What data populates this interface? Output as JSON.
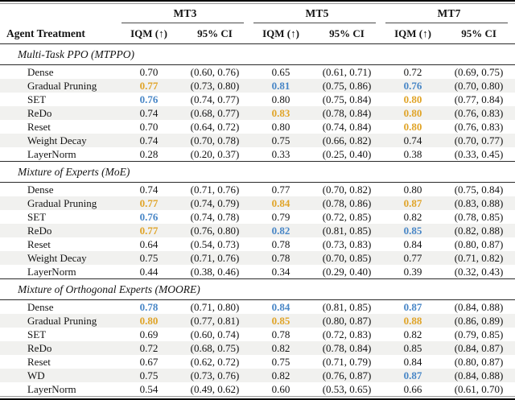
{
  "colors": {
    "highlight_orange": "#E0A428",
    "highlight_blue": "#4886C6",
    "stripe": "#F1F1EF",
    "text": "#141414"
  },
  "header": {
    "treatment_col": "Agent Treatment",
    "groups": [
      "MT3",
      "MT5",
      "MT7"
    ],
    "metric_label": "IQM (↑)",
    "ci_label": "95% CI"
  },
  "sections": [
    {
      "title": "Multi-Task PPO (MTPPO)",
      "rows": [
        {
          "treatment": "Dense",
          "cols": [
            {
              "iqm": "0.70",
              "hl": "none",
              "ci": "(0.60, 0.76)"
            },
            {
              "iqm": "0.65",
              "hl": "none",
              "ci": "(0.61, 0.71)"
            },
            {
              "iqm": "0.72",
              "hl": "none",
              "ci": "(0.69, 0.75)"
            }
          ]
        },
        {
          "treatment": "Gradual Pruning",
          "cols": [
            {
              "iqm": "0.77",
              "hl": "orange",
              "ci": "(0.73, 0.80)"
            },
            {
              "iqm": "0.81",
              "hl": "blue",
              "ci": "(0.75, 0.86)"
            },
            {
              "iqm": "0.76",
              "hl": "blue",
              "ci": "(0.70, 0.80)"
            }
          ]
        },
        {
          "treatment": "SET",
          "cols": [
            {
              "iqm": "0.76",
              "hl": "blue",
              "ci": "(0.74, 0.77)"
            },
            {
              "iqm": "0.80",
              "hl": "none",
              "ci": "(0.75, 0.84)"
            },
            {
              "iqm": "0.80",
              "hl": "orange",
              "ci": "(0.77, 0.84)"
            }
          ]
        },
        {
          "treatment": "ReDo",
          "cols": [
            {
              "iqm": "0.74",
              "hl": "none",
              "ci": "(0.68, 0.77)"
            },
            {
              "iqm": "0.83",
              "hl": "orange",
              "ci": "(0.78, 0.84)"
            },
            {
              "iqm": "0.80",
              "hl": "orange",
              "ci": "(0.76, 0.83)"
            }
          ]
        },
        {
          "treatment": "Reset",
          "cols": [
            {
              "iqm": "0.70",
              "hl": "none",
              "ci": "(0.64, 0.72)"
            },
            {
              "iqm": "0.80",
              "hl": "none",
              "ci": "(0.74, 0.84)"
            },
            {
              "iqm": "0.80",
              "hl": "orange",
              "ci": "(0.76, 0.83)"
            }
          ]
        },
        {
          "treatment": "Weight Decay",
          "cols": [
            {
              "iqm": "0.74",
              "hl": "none",
              "ci": "(0.70, 0.78)"
            },
            {
              "iqm": "0.75",
              "hl": "none",
              "ci": "(0.66, 0.82)"
            },
            {
              "iqm": "0.74",
              "hl": "none",
              "ci": "(0.70, 0.77)"
            }
          ]
        },
        {
          "treatment": "LayerNorm",
          "cols": [
            {
              "iqm": "0.28",
              "hl": "none",
              "ci": "(0.20, 0.37)"
            },
            {
              "iqm": "0.33",
              "hl": "none",
              "ci": "(0.25, 0.40)"
            },
            {
              "iqm": "0.38",
              "hl": "none",
              "ci": "(0.33, 0.45)"
            }
          ]
        }
      ]
    },
    {
      "title": "Mixture of Experts (MoE)",
      "rows": [
        {
          "treatment": "Dense",
          "cols": [
            {
              "iqm": "0.74",
              "hl": "none",
              "ci": "(0.71, 0.76)"
            },
            {
              "iqm": "0.77",
              "hl": "none",
              "ci": "(0.70, 0.82)"
            },
            {
              "iqm": "0.80",
              "hl": "none",
              "ci": "(0.75, 0.84)"
            }
          ]
        },
        {
          "treatment": "Gradual Pruning",
          "cols": [
            {
              "iqm": "0.77",
              "hl": "orange",
              "ci": "(0.74, 0.79)"
            },
            {
              "iqm": "0.84",
              "hl": "orange",
              "ci": "(0.78, 0.86)"
            },
            {
              "iqm": "0.87",
              "hl": "orange",
              "ci": "(0.83, 0.88)"
            }
          ]
        },
        {
          "treatment": "SET",
          "cols": [
            {
              "iqm": "0.76",
              "hl": "blue",
              "ci": "(0.74, 0.78)"
            },
            {
              "iqm": "0.79",
              "hl": "none",
              "ci": "(0.72, 0.85)"
            },
            {
              "iqm": "0.82",
              "hl": "none",
              "ci": "(0.78, 0.85)"
            }
          ]
        },
        {
          "treatment": "ReDo",
          "cols": [
            {
              "iqm": "0.77",
              "hl": "orange",
              "ci": "(0.76, 0.80)"
            },
            {
              "iqm": "0.82",
              "hl": "blue",
              "ci": "(0.81, 0.85)"
            },
            {
              "iqm": "0.85",
              "hl": "blue",
              "ci": "(0.82, 0.88)"
            }
          ]
        },
        {
          "treatment": "Reset",
          "cols": [
            {
              "iqm": "0.64",
              "hl": "none",
              "ci": "(0.54, 0.73)"
            },
            {
              "iqm": "0.78",
              "hl": "none",
              "ci": "(0.73, 0.83)"
            },
            {
              "iqm": "0.84",
              "hl": "none",
              "ci": "(0.80, 0.87)"
            }
          ]
        },
        {
          "treatment": "Weight Decay",
          "cols": [
            {
              "iqm": "0.75",
              "hl": "none",
              "ci": "(0.71, 0.76)"
            },
            {
              "iqm": "0.78",
              "hl": "none",
              "ci": "(0.70, 0.85)"
            },
            {
              "iqm": "0.77",
              "hl": "none",
              "ci": "(0.71, 0.82)"
            }
          ]
        },
        {
          "treatment": "LayerNorm",
          "cols": [
            {
              "iqm": "0.44",
              "hl": "none",
              "ci": "(0.38, 0.46)"
            },
            {
              "iqm": "0.34",
              "hl": "none",
              "ci": "(0.29, 0.40)"
            },
            {
              "iqm": "0.39",
              "hl": "none",
              "ci": "(0.32, 0.43)"
            }
          ]
        }
      ]
    },
    {
      "title": "Mixture of Orthogonal Experts (MOORE)",
      "rows": [
        {
          "treatment": "Dense",
          "cols": [
            {
              "iqm": "0.78",
              "hl": "blue",
              "ci": "(0.71, 0.80)"
            },
            {
              "iqm": "0.84",
              "hl": "blue",
              "ci": "(0.81, 0.85)"
            },
            {
              "iqm": "0.87",
              "hl": "blue",
              "ci": "(0.84, 0.88)"
            }
          ]
        },
        {
          "treatment": "Gradual Pruning",
          "cols": [
            {
              "iqm": "0.80",
              "hl": "orange",
              "ci": "(0.77, 0.81)"
            },
            {
              "iqm": "0.85",
              "hl": "orange",
              "ci": "(0.80, 0.87)"
            },
            {
              "iqm": "0.88",
              "hl": "orange",
              "ci": "(0.86, 0.89)"
            }
          ]
        },
        {
          "treatment": "SET",
          "cols": [
            {
              "iqm": "0.69",
              "hl": "none",
              "ci": "(0.60, 0.74)"
            },
            {
              "iqm": "0.78",
              "hl": "none",
              "ci": "(0.72, 0.83)"
            },
            {
              "iqm": "0.82",
              "hl": "none",
              "ci": "(0.79, 0.85)"
            }
          ]
        },
        {
          "treatment": "ReDo",
          "cols": [
            {
              "iqm": "0.72",
              "hl": "none",
              "ci": "(0.68, 0.75)"
            },
            {
              "iqm": "0.82",
              "hl": "none",
              "ci": "(0.78, 0.84)"
            },
            {
              "iqm": "0.85",
              "hl": "none",
              "ci": "(0.84, 0.87)"
            }
          ]
        },
        {
          "treatment": "Reset",
          "cols": [
            {
              "iqm": "0.67",
              "hl": "none",
              "ci": "(0.62, 0.72)"
            },
            {
              "iqm": "0.75",
              "hl": "none",
              "ci": "(0.71, 0.79)"
            },
            {
              "iqm": "0.84",
              "hl": "none",
              "ci": "(0.80, 0.87)"
            }
          ]
        },
        {
          "treatment": "WD",
          "cols": [
            {
              "iqm": "0.75",
              "hl": "none",
              "ci": "(0.73, 0.76)"
            },
            {
              "iqm": "0.82",
              "hl": "none",
              "ci": "(0.76, 0.87)"
            },
            {
              "iqm": "0.87",
              "hl": "blue",
              "ci": "(0.84, 0.88)"
            }
          ]
        },
        {
          "treatment": "LayerNorm",
          "cols": [
            {
              "iqm": "0.54",
              "hl": "none",
              "ci": "(0.49, 0.62)"
            },
            {
              "iqm": "0.60",
              "hl": "none",
              "ci": "(0.53, 0.65)"
            },
            {
              "iqm": "0.66",
              "hl": "none",
              "ci": "(0.61, 0.70)"
            }
          ]
        }
      ]
    }
  ]
}
